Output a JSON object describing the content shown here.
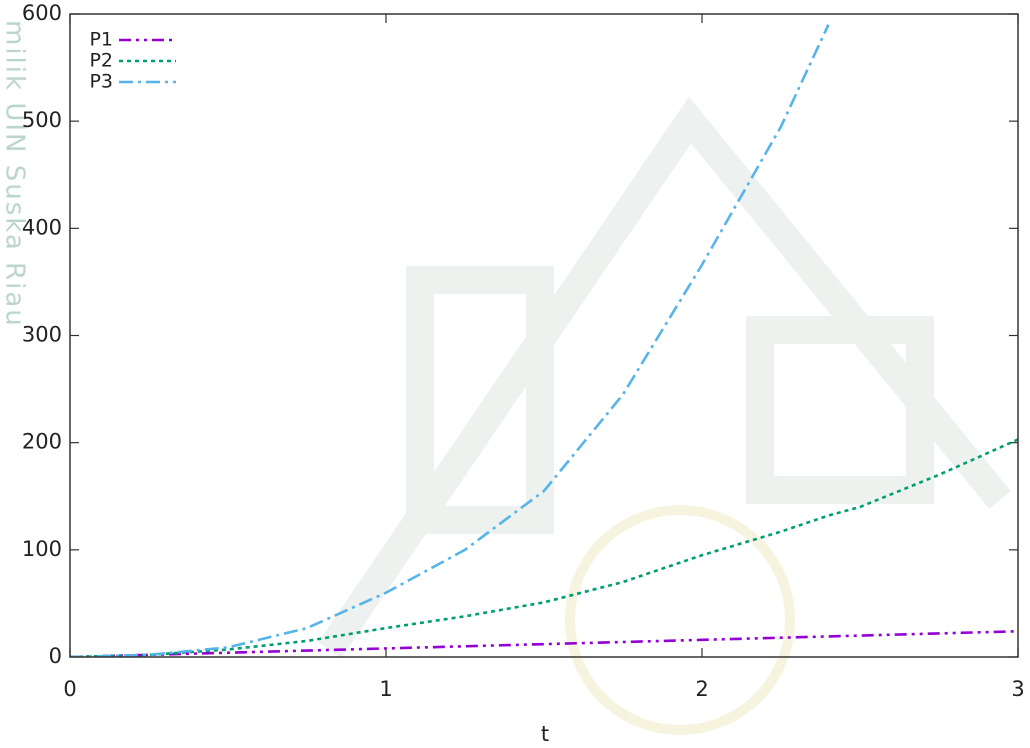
{
  "chart_data": {
    "type": "line",
    "watermark": "milik UIN Suska Riau",
    "x_label": "t",
    "x": [
      0,
      0.25,
      0.5,
      0.75,
      1,
      1.25,
      1.5,
      1.75,
      2,
      2.25,
      2.4,
      2.5,
      2.75,
      3
    ],
    "series": [
      {
        "name": "P1",
        "color": "#9400d3",
        "dash": "12,5,3,5,3,5",
        "values": [
          0,
          2,
          4,
          6,
          8,
          10,
          12,
          14,
          16,
          18,
          19.2,
          20,
          22,
          24
        ]
      },
      {
        "name": "P2",
        "color": "#009e73",
        "dash": "4,4",
        "values": [
          0,
          2,
          7,
          15,
          27,
          38,
          51,
          70,
          95,
          117,
          132,
          140,
          170,
          203
        ]
      },
      {
        "name": "P3",
        "color": "#56b4e9",
        "dash": "14,5,3,5",
        "values": [
          0,
          2,
          9,
          27,
          60,
          100,
          155,
          245,
          366,
          495,
          590,
          null,
          null,
          null
        ]
      }
    ],
    "xlim": [
      0,
      3
    ],
    "xticks": [
      0,
      1,
      2,
      3
    ],
    "ylim": [
      0,
      600
    ],
    "yticks": [
      0,
      100,
      200,
      300,
      400,
      500,
      600
    ],
    "legend": "top-left"
  }
}
